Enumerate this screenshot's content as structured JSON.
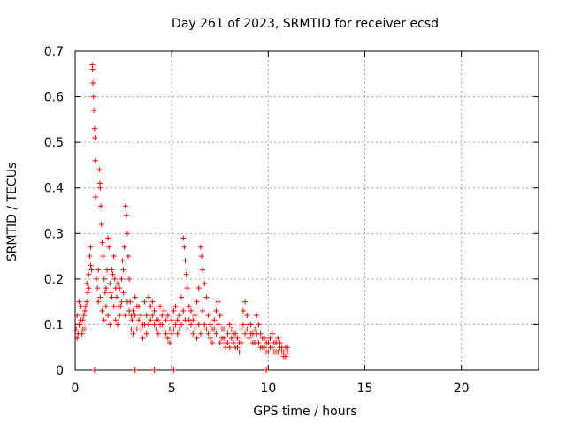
{
  "chart_data": {
    "type": "scatter",
    "title": "Day 261 of 2023, SRMTID for receiver ecsd",
    "xlabel": "GPS time / hours",
    "ylabel": "SRMTID / TECUs",
    "xlim": [
      0,
      24
    ],
    "ylim": [
      0,
      0.7
    ],
    "grid": true,
    "marker": "+",
    "series_color": "#ff0000",
    "x_ticks": [
      0,
      5,
      10,
      15,
      20
    ],
    "y_ticks": [
      0,
      0.1,
      0.2,
      0.3,
      0.4,
      0.5,
      0.6,
      0.7
    ],
    "x_tick_labels": [
      "0",
      "5",
      "10",
      "15",
      "20"
    ],
    "y_tick_labels": [
      "0",
      "0.1",
      "0.2",
      "0.3",
      "0.4",
      "0.5",
      "0.6",
      "0.7"
    ],
    "series": [
      {
        "name": "SRMTID",
        "points": [
          [
            0.05,
            0.09
          ],
          [
            0.1,
            0.12
          ],
          [
            0.15,
            0.08
          ],
          [
            0.2,
            0.15
          ],
          [
            0.25,
            0.1
          ],
          [
            0.3,
            0.14
          ],
          [
            0.35,
            0.08
          ],
          [
            0.4,
            0.11
          ],
          [
            0.45,
            0.12
          ],
          [
            0.5,
            0.09
          ],
          [
            0.55,
            0.14
          ],
          [
            0.6,
            0.19
          ],
          [
            0.65,
            0.17
          ],
          [
            0.7,
            0.21
          ],
          [
            0.75,
            0.25
          ],
          [
            0.8,
            0.27
          ],
          [
            0.85,
            0.22
          ],
          [
            0.88,
            0.67
          ],
          [
            0.9,
            0.66
          ],
          [
            0.92,
            0.63
          ],
          [
            0.95,
            0.6
          ],
          [
            0.97,
            0.57
          ],
          [
            1.0,
            0.53
          ],
          [
            1.02,
            0.51
          ],
          [
            1.04,
            0.46
          ],
          [
            1.06,
            0.38
          ],
          [
            1.1,
            0.2
          ],
          [
            1.15,
            0.18
          ],
          [
            1.2,
            0.15
          ],
          [
            1.25,
            0.44
          ],
          [
            1.28,
            0.41
          ],
          [
            1.3,
            0.4
          ],
          [
            1.33,
            0.36
          ],
          [
            1.36,
            0.32
          ],
          [
            1.4,
            0.28
          ],
          [
            1.45,
            0.25
          ],
          [
            1.5,
            0.2
          ],
          [
            1.55,
            0.17
          ],
          [
            1.6,
            0.18
          ],
          [
            1.65,
            0.22
          ],
          [
            1.7,
            0.29
          ],
          [
            1.75,
            0.27
          ],
          [
            1.8,
            0.19
          ],
          [
            1.85,
            0.17
          ],
          [
            1.9,
            0.16
          ],
          [
            1.95,
            0.21
          ],
          [
            2.0,
            0.25
          ],
          [
            2.05,
            0.2
          ],
          [
            2.1,
            0.18
          ],
          [
            2.15,
            0.16
          ],
          [
            2.2,
            0.19
          ],
          [
            2.25,
            0.14
          ],
          [
            2.3,
            0.12
          ],
          [
            2.35,
            0.14
          ],
          [
            2.4,
            0.2
          ],
          [
            2.45,
            0.24
          ],
          [
            2.5,
            0.22
          ],
          [
            2.55,
            0.27
          ],
          [
            2.6,
            0.36
          ],
          [
            2.65,
            0.34
          ],
          [
            2.7,
            0.3
          ],
          [
            2.75,
            0.25
          ],
          [
            2.8,
            0.2
          ],
          [
            2.85,
            0.15
          ],
          [
            2.9,
            0.12
          ],
          [
            2.95,
            0.11
          ],
          [
            3.0,
            0.13
          ],
          [
            3.1,
            0.16
          ],
          [
            3.2,
            0.14
          ],
          [
            3.3,
            0.11
          ],
          [
            3.4,
            0.09
          ],
          [
            3.5,
            0.07
          ],
          [
            3.6,
            0.1
          ],
          [
            3.7,
            0.12
          ],
          [
            3.8,
            0.16
          ],
          [
            3.9,
            0.14
          ],
          [
            4.0,
            0.12
          ],
          [
            4.1,
            0.1
          ],
          [
            4.2,
            0.09
          ],
          [
            4.3,
            0.11
          ],
          [
            4.4,
            0.14
          ],
          [
            4.5,
            0.12
          ],
          [
            4.6,
            0.09
          ],
          [
            4.7,
            0.08
          ],
          [
            4.8,
            0.07
          ],
          [
            4.9,
            0.09
          ],
          [
            5.0,
            0.11
          ],
          [
            5.1,
            0.13
          ],
          [
            5.2,
            0.1
          ],
          [
            5.3,
            0.08
          ],
          [
            5.4,
            0.12
          ],
          [
            5.5,
            0.16
          ],
          [
            5.6,
            0.29
          ],
          [
            5.65,
            0.27
          ],
          [
            5.7,
            0.24
          ],
          [
            5.75,
            0.21
          ],
          [
            5.8,
            0.18
          ],
          [
            5.9,
            0.14
          ],
          [
            6.0,
            0.1
          ],
          [
            6.1,
            0.08
          ],
          [
            6.2,
            0.12
          ],
          [
            6.3,
            0.15
          ],
          [
            6.4,
            0.18
          ],
          [
            6.5,
            0.27
          ],
          [
            6.55,
            0.25
          ],
          [
            6.6,
            0.22
          ],
          [
            6.7,
            0.19
          ],
          [
            6.8,
            0.16
          ],
          [
            6.9,
            0.12
          ],
          [
            7.0,
            0.1
          ],
          [
            7.1,
            0.09
          ],
          [
            7.2,
            0.11
          ],
          [
            7.3,
            0.13
          ],
          [
            7.4,
            0.15
          ],
          [
            7.5,
            0.12
          ],
          [
            7.6,
            0.09
          ],
          [
            7.7,
            0.07
          ],
          [
            7.8,
            0.06
          ],
          [
            7.9,
            0.08
          ],
          [
            8.0,
            0.1
          ],
          [
            8.1,
            0.07
          ],
          [
            8.2,
            0.06
          ],
          [
            8.3,
            0.08
          ],
          [
            8.4,
            0.05
          ],
          [
            8.5,
            0.06
          ],
          [
            8.6,
            0.09
          ],
          [
            8.7,
            0.13
          ],
          [
            8.8,
            0.15
          ],
          [
            8.9,
            0.12
          ],
          [
            9.0,
            0.1
          ],
          [
            9.1,
            0.08
          ],
          [
            9.2,
            0.06
          ],
          [
            9.3,
            0.09
          ],
          [
            9.4,
            0.12
          ],
          [
            9.5,
            0.1
          ],
          [
            9.6,
            0.08
          ],
          [
            9.7,
            0.07
          ],
          [
            9.8,
            0.05
          ],
          [
            9.9,
            0.04
          ],
          [
            10.0,
            0.06
          ],
          [
            10.1,
            0.05
          ],
          [
            10.2,
            0.08
          ],
          [
            10.3,
            0.06
          ],
          [
            10.4,
            0.04
          ],
          [
            10.5,
            0.07
          ],
          [
            10.6,
            0.05
          ],
          [
            10.7,
            0.04
          ],
          [
            10.8,
            0.03
          ],
          [
            10.9,
            0.05
          ],
          [
            11.0,
            0.04
          ],
          [
            0.1,
            0.07
          ],
          [
            0.2,
            0.1
          ],
          [
            0.3,
            0.11
          ],
          [
            0.4,
            0.09
          ],
          [
            0.5,
            0.13
          ],
          [
            0.6,
            0.15
          ],
          [
            0.7,
            0.18
          ],
          [
            0.8,
            0.23
          ],
          [
            1.2,
            0.22
          ],
          [
            1.3,
            0.16
          ],
          [
            1.4,
            0.13
          ],
          [
            1.5,
            0.11
          ],
          [
            1.6,
            0.14
          ],
          [
            1.7,
            0.12
          ],
          [
            1.8,
            0.1
          ],
          [
            1.9,
            0.22
          ],
          [
            2.0,
            0.14
          ],
          [
            2.1,
            0.11
          ],
          [
            2.2,
            0.1
          ],
          [
            2.3,
            0.18
          ],
          [
            2.4,
            0.15
          ],
          [
            2.5,
            0.17
          ],
          [
            2.6,
            0.12
          ],
          [
            2.7,
            0.15
          ],
          [
            2.8,
            0.13
          ],
          [
            2.9,
            0.09
          ],
          [
            3.0,
            0.08
          ],
          [
            3.1,
            0.12
          ],
          [
            3.2,
            0.09
          ],
          [
            3.3,
            0.14
          ],
          [
            3.4,
            0.12
          ],
          [
            3.5,
            0.1
          ],
          [
            3.6,
            0.15
          ],
          [
            3.7,
            0.08
          ],
          [
            3.8,
            0.1
          ],
          [
            3.9,
            0.11
          ],
          [
            4.0,
            0.15
          ],
          [
            4.1,
            0.13
          ],
          [
            4.2,
            0.11
          ],
          [
            4.3,
            0.08
          ],
          [
            4.4,
            0.1
          ],
          [
            4.5,
            0.1
          ],
          [
            4.6,
            0.13
          ],
          [
            4.7,
            0.11
          ],
          [
            4.8,
            0.12
          ],
          [
            4.9,
            0.06
          ],
          [
            5.0,
            0.08
          ],
          [
            5.1,
            0.09
          ],
          [
            5.2,
            0.14
          ],
          [
            5.3,
            0.11
          ],
          [
            5.4,
            0.09
          ],
          [
            5.5,
            0.1
          ],
          [
            5.6,
            0.13
          ],
          [
            5.7,
            0.11
          ],
          [
            5.8,
            0.09
          ],
          [
            5.9,
            0.11
          ],
          [
            6.0,
            0.13
          ],
          [
            6.1,
            0.11
          ],
          [
            6.2,
            0.09
          ],
          [
            6.3,
            0.07
          ],
          [
            6.4,
            0.1
          ],
          [
            6.5,
            0.08
          ],
          [
            6.6,
            0.13
          ],
          [
            6.7,
            0.1
          ],
          [
            6.8,
            0.09
          ],
          [
            6.9,
            0.08
          ],
          [
            7.0,
            0.07
          ],
          [
            7.1,
            0.06
          ],
          [
            7.2,
            0.09
          ],
          [
            7.3,
            0.08
          ],
          [
            7.4,
            0.1
          ],
          [
            7.5,
            0.06
          ],
          [
            7.6,
            0.07
          ],
          [
            7.7,
            0.09
          ],
          [
            7.8,
            0.05
          ],
          [
            7.9,
            0.06
          ],
          [
            8.0,
            0.05
          ],
          [
            8.1,
            0.09
          ],
          [
            8.2,
            0.08
          ],
          [
            8.3,
            0.05
          ],
          [
            8.4,
            0.07
          ],
          [
            8.5,
            0.04
          ],
          [
            8.6,
            0.06
          ],
          [
            8.7,
            0.1
          ],
          [
            8.8,
            0.08
          ],
          [
            8.9,
            0.09
          ],
          [
            9.0,
            0.07
          ],
          [
            9.1,
            0.1
          ],
          [
            9.2,
            0.08
          ],
          [
            9.3,
            0.06
          ],
          [
            9.4,
            0.08
          ],
          [
            9.5,
            0.06
          ],
          [
            9.6,
            0.05
          ],
          [
            9.7,
            0.05
          ],
          [
            9.8,
            0.07
          ],
          [
            9.9,
            0.06
          ],
          [
            10.0,
            0.04
          ],
          [
            10.1,
            0.07
          ],
          [
            10.2,
            0.05
          ],
          [
            10.3,
            0.04
          ],
          [
            10.4,
            0.06
          ],
          [
            10.5,
            0.04
          ],
          [
            10.6,
            0.06
          ],
          [
            10.7,
            0.05
          ],
          [
            10.8,
            0.04
          ],
          [
            10.9,
            0.03
          ],
          [
            11.0,
            0.05
          ],
          [
            1.0,
            0.0
          ],
          [
            3.1,
            0.0
          ],
          [
            4.1,
            0.0
          ],
          [
            5.1,
            0.0
          ],
          [
            9.9,
            0.0
          ]
        ]
      }
    ]
  }
}
